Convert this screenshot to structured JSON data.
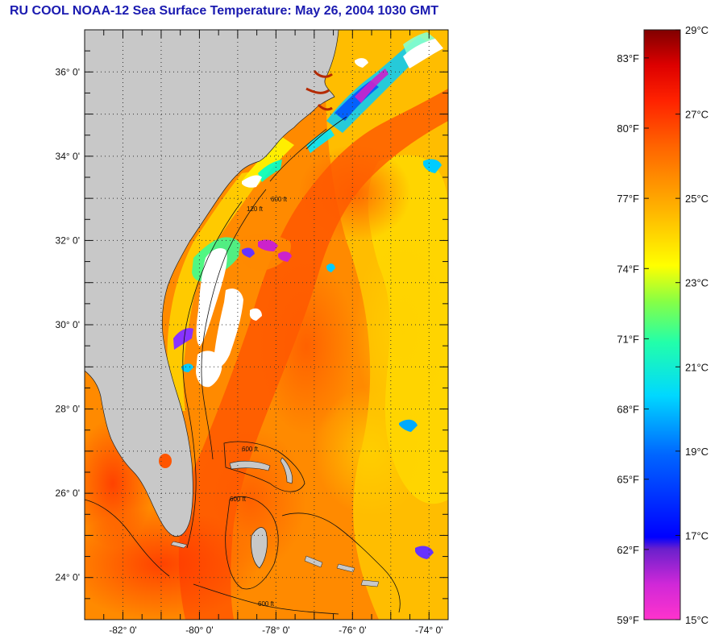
{
  "title": "RU COOL  NOAA-12  Sea Surface Temperature:  May 26, 2004 1030 GMT",
  "map": {
    "lon_range": [
      -83,
      -73.5
    ],
    "lat_range": [
      23,
      37
    ],
    "lat_ticks": [
      {
        "value": 36,
        "label": "36° 0'"
      },
      {
        "value": 34,
        "label": "34° 0'"
      },
      {
        "value": 32,
        "label": "32° 0'"
      },
      {
        "value": 30,
        "label": "30° 0'"
      },
      {
        "value": 28,
        "label": "28° 0'"
      },
      {
        "value": 26,
        "label": "26° 0'"
      },
      {
        "value": 24,
        "label": "24° 0'"
      }
    ],
    "lon_ticks": [
      {
        "value": -82,
        "label": "-82° 0'"
      },
      {
        "value": -80,
        "label": "-80° 0'"
      },
      {
        "value": -78,
        "label": "-78° 0'"
      },
      {
        "value": -76,
        "label": "-76° 0'"
      },
      {
        "value": -74,
        "label": "-74° 0'"
      }
    ],
    "grid": "dotted",
    "contour_labels": [
      "120 ft",
      "600 ft",
      "600 ft",
      "600 ft",
      "600 ft"
    ],
    "land_color": "#c8c8c8",
    "cloud_color": "#ffffff"
  },
  "colorbar": {
    "celsius_range": [
      15,
      29
    ],
    "fahrenheit_labels": [
      {
        "value": 83,
        "label": "83°F"
      },
      {
        "value": 80,
        "label": "80°F"
      },
      {
        "value": 77,
        "label": "77°F"
      },
      {
        "value": 74,
        "label": "74°F"
      },
      {
        "value": 71,
        "label": "71°F"
      },
      {
        "value": 68,
        "label": "68°F"
      },
      {
        "value": 65,
        "label": "65°F"
      },
      {
        "value": 62,
        "label": "62°F"
      },
      {
        "value": 59,
        "label": "59°F"
      }
    ],
    "celsius_labels": [
      {
        "value": 29,
        "label": "29°C"
      },
      {
        "value": 27,
        "label": "27°C"
      },
      {
        "value": 25,
        "label": "25°C"
      },
      {
        "value": 23,
        "label": "23°C"
      },
      {
        "value": 21,
        "label": "21°C"
      },
      {
        "value": 19,
        "label": "19°C"
      },
      {
        "value": 17,
        "label": "17°C"
      },
      {
        "value": 15,
        "label": "15°C"
      }
    ],
    "colors": [
      "#ff33cc",
      "#7a22cc",
      "#0000ff",
      "#0077ff",
      "#00ffff",
      "#44ff88",
      "#ffff00",
      "#ffaa00",
      "#ff5500",
      "#ff0000",
      "#800000"
    ]
  }
}
